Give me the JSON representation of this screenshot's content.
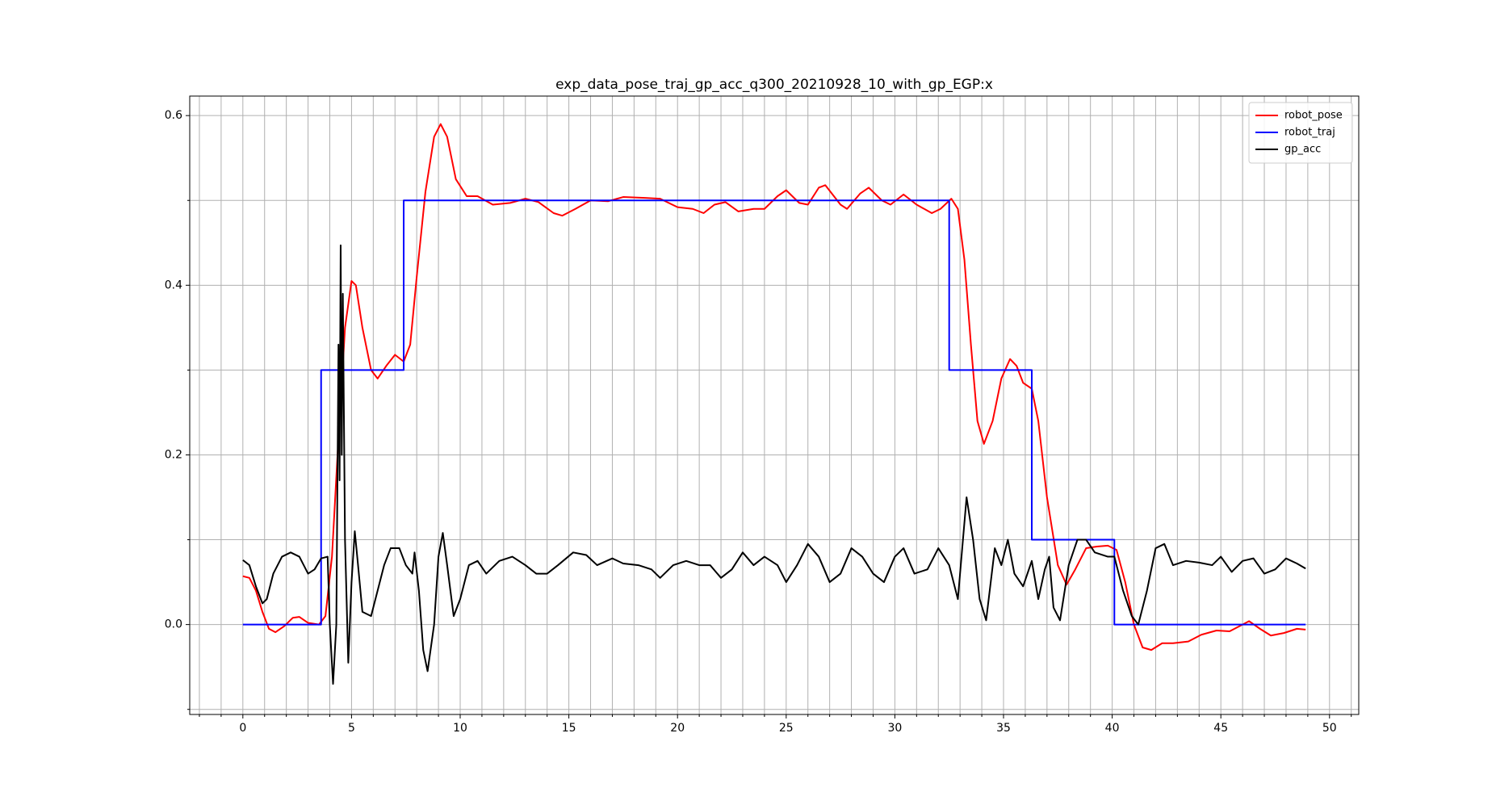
{
  "chart_data": {
    "type": "line",
    "title": "exp_data_pose_traj_gp_acc_q300_20210928_10_with_gp_EGP:x",
    "xlim": [
      -2.445,
      51.345
    ],
    "ylim": [
      -0.106,
      0.623
    ],
    "xticks": [
      0,
      5,
      10,
      15,
      20,
      25,
      30,
      35,
      40,
      45,
      50
    ],
    "yticks": [
      {
        "value": 0,
        "label": "0.0"
      },
      0.2,
      0.4,
      0.6
    ],
    "xminorticks": [
      -2,
      -1,
      1,
      2,
      3,
      4,
      6,
      7,
      8,
      9,
      11,
      12,
      13,
      14,
      16,
      17,
      18,
      19,
      21,
      22,
      23,
      24,
      26,
      27,
      28,
      29,
      31,
      32,
      33,
      34,
      36,
      37,
      38,
      39,
      41,
      42,
      43,
      44,
      46,
      47,
      48,
      49,
      51
    ],
    "yminorticks": [
      -0.1,
      0.1,
      0.3,
      0.5
    ],
    "grid": true,
    "legend": "upper right",
    "series": [
      {
        "name": "robot_pose",
        "color": "#ff0000",
        "x": [
          0,
          0.3,
          0.6,
          0.9,
          1.2,
          1.5,
          1.9,
          2.3,
          2.6,
          3.0,
          3.5,
          3.8,
          4.1,
          4.4,
          4.7,
          5.0,
          5.2,
          5.5,
          5.9,
          6.2,
          6.6,
          7.0,
          7.4,
          7.7,
          8.0,
          8.4,
          8.8,
          9.1,
          9.4,
          9.8,
          10.3,
          10.8,
          11.5,
          12.3,
          13.0,
          13.6,
          14.3,
          14.7,
          15.3,
          16.0,
          16.8,
          17.5,
          18.5,
          19.2,
          20.0,
          20.7,
          21.2,
          21.7,
          22.2,
          22.8,
          23.5,
          24.0,
          24.6,
          25.0,
          25.6,
          26.0,
          26.5,
          26.8,
          27.5,
          27.8,
          28.4,
          28.8,
          29.4,
          29.8,
          30.4,
          31.0,
          31.7,
          32.1,
          32.6,
          32.9,
          33.2,
          33.5,
          33.8,
          34.1,
          34.5,
          34.9,
          35.3,
          35.6,
          35.9,
          36.3,
          36.6,
          37.0,
          37.5,
          37.9,
          38.3,
          38.8,
          39.3,
          39.8,
          40.2,
          40.6,
          41.0,
          41.4,
          41.8,
          42.3,
          42.8,
          43.5,
          44.1,
          44.8,
          45.4,
          46.0,
          46.3,
          46.8,
          47.3,
          47.9,
          48.5,
          48.9
        ],
        "values": [
          0.057,
          0.055,
          0.04,
          0.015,
          -0.005,
          -0.009,
          -0.002,
          0.008,
          0.009,
          0.002,
          0.0,
          0.01,
          0.08,
          0.22,
          0.35,
          0.405,
          0.4,
          0.35,
          0.3,
          0.29,
          0.305,
          0.318,
          0.31,
          0.33,
          0.41,
          0.51,
          0.575,
          0.59,
          0.575,
          0.525,
          0.505,
          0.505,
          0.495,
          0.497,
          0.502,
          0.498,
          0.485,
          0.482,
          0.49,
          0.5,
          0.499,
          0.504,
          0.503,
          0.502,
          0.492,
          0.49,
          0.485,
          0.495,
          0.498,
          0.487,
          0.49,
          0.49,
          0.505,
          0.512,
          0.497,
          0.495,
          0.515,
          0.518,
          0.495,
          0.49,
          0.508,
          0.515,
          0.5,
          0.495,
          0.507,
          0.495,
          0.485,
          0.49,
          0.502,
          0.49,
          0.43,
          0.33,
          0.24,
          0.213,
          0.24,
          0.29,
          0.313,
          0.305,
          0.285,
          0.278,
          0.24,
          0.15,
          0.07,
          0.047,
          0.065,
          0.09,
          0.092,
          0.093,
          0.088,
          0.05,
          0.0,
          -0.027,
          -0.03,
          -0.022,
          -0.022,
          -0.02,
          -0.012,
          -0.007,
          -0.008,
          0.0,
          0.004,
          -0.005,
          -0.013,
          -0.01,
          -0.005,
          -0.006
        ]
      },
      {
        "name": "robot_traj",
        "color": "#0000ff",
        "x": [
          0,
          3.6,
          3.6,
          7.4,
          7.4,
          32.5,
          32.5,
          36.3,
          36.3,
          40.1,
          40.1,
          48.9
        ],
        "values": [
          0,
          0,
          0.3,
          0.3,
          0.5,
          0.5,
          0.3,
          0.3,
          0.1,
          0.1,
          0,
          0
        ]
      },
      {
        "name": "gp_acc",
        "color": "#000000",
        "x": [
          0,
          0.3,
          0.6,
          0.9,
          1.1,
          1.4,
          1.8,
          2.2,
          2.6,
          3.0,
          3.3,
          3.6,
          3.9,
          4.0,
          4.15,
          4.3,
          4.4,
          4.45,
          4.5,
          4.55,
          4.6,
          4.7,
          4.85,
          5.0,
          5.15,
          5.3,
          5.5,
          5.9,
          6.2,
          6.5,
          6.8,
          7.2,
          7.5,
          7.8,
          7.9,
          8.1,
          8.3,
          8.5,
          8.8,
          9.0,
          9.2,
          9.4,
          9.7,
          10.0,
          10.4,
          10.8,
          11.2,
          11.8,
          12.4,
          13.0,
          13.5,
          14.0,
          14.5,
          15.2,
          15.8,
          16.3,
          17.0,
          17.5,
          18.2,
          18.8,
          19.2,
          19.8,
          20.4,
          21.0,
          21.5,
          22.0,
          22.5,
          23.0,
          23.5,
          24.0,
          24.6,
          25.0,
          25.5,
          26.0,
          26.5,
          27.0,
          27.5,
          28.0,
          28.5,
          29.0,
          29.5,
          30.0,
          30.4,
          30.9,
          31.5,
          32.0,
          32.5,
          32.9,
          33.3,
          33.6,
          33.9,
          34.2,
          34.6,
          34.9,
          35.2,
          35.5,
          35.9,
          36.3,
          36.6,
          36.9,
          37.1,
          37.3,
          37.6,
          38.0,
          38.4,
          38.8,
          39.2,
          39.8,
          40.1,
          40.5,
          40.9,
          41.2,
          41.6,
          42.0,
          42.4,
          42.8,
          43.4,
          44.0,
          44.6,
          45.0,
          45.5,
          46.0,
          46.5,
          47.0,
          47.5,
          48.0,
          48.5,
          48.9
        ],
        "values": [
          0.076,
          0.07,
          0.045,
          0.025,
          0.03,
          0.06,
          0.08,
          0.085,
          0.08,
          0.06,
          0.065,
          0.078,
          0.08,
          0.0,
          -0.07,
          0.0,
          0.33,
          0.17,
          0.447,
          0.2,
          0.39,
          0.1,
          -0.045,
          0.05,
          0.11,
          0.07,
          0.015,
          0.01,
          0.04,
          0.07,
          0.09,
          0.09,
          0.07,
          0.06,
          0.085,
          0.04,
          -0.03,
          -0.055,
          0.0,
          0.08,
          0.108,
          0.07,
          0.01,
          0.03,
          0.07,
          0.075,
          0.06,
          0.075,
          0.08,
          0.07,
          0.06,
          0.06,
          0.07,
          0.085,
          0.082,
          0.07,
          0.078,
          0.072,
          0.07,
          0.065,
          0.055,
          0.07,
          0.075,
          0.07,
          0.07,
          0.055,
          0.065,
          0.085,
          0.07,
          0.08,
          0.07,
          0.05,
          0.07,
          0.095,
          0.08,
          0.05,
          0.06,
          0.09,
          0.08,
          0.06,
          0.05,
          0.08,
          0.09,
          0.06,
          0.065,
          0.09,
          0.07,
          0.03,
          0.15,
          0.1,
          0.03,
          0.005,
          0.09,
          0.07,
          0.1,
          0.06,
          0.045,
          0.075,
          0.03,
          0.065,
          0.08,
          0.02,
          0.005,
          0.07,
          0.1,
          0.1,
          0.085,
          0.08,
          0.08,
          0.04,
          0.01,
          0.0,
          0.04,
          0.09,
          0.095,
          0.07,
          0.075,
          0.073,
          0.07,
          0.08,
          0.062,
          0.075,
          0.078,
          0.06,
          0.065,
          0.078,
          0.072,
          0.066
        ]
      }
    ]
  }
}
